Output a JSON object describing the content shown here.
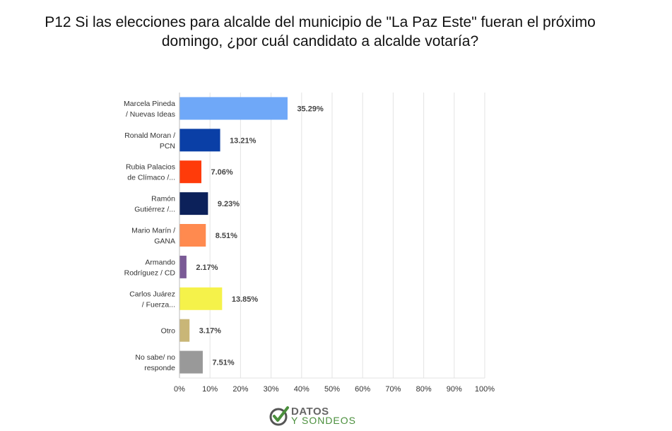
{
  "title": {
    "line1": "P12 Si las elecciones para alcalde del municipio de \"La Paz Este\" fueran el próximo",
    "line2": "domingo, ¿por cuál candidato a alcalde votaría?"
  },
  "chart_data": {
    "type": "bar",
    "orientation": "horizontal",
    "categories": [
      [
        "Marcela Pineda",
        "/ Nuevas Ideas"
      ],
      [
        "Ronald Moran /",
        "PCN"
      ],
      [
        "Rubia Palacios",
        "de Clímaco /..."
      ],
      [
        "Ramón",
        "Gutiérrez /..."
      ],
      [
        "Mario Marín /",
        "GANA"
      ],
      [
        "Armando",
        "Rodríguez / CD"
      ],
      [
        "Carlos Juárez",
        "/ Fuerza..."
      ],
      [
        "Otro"
      ],
      [
        "No sabe/ no",
        "responde"
      ]
    ],
    "values": [
      35.29,
      13.21,
      7.06,
      9.23,
      8.51,
      2.17,
      13.85,
      3.17,
      7.51
    ],
    "value_labels": [
      "35.29%",
      "13.21%",
      "7.06%",
      "9.23%",
      "8.51%",
      "2.17%",
      "13.85%",
      "3.17%",
      "7.51%"
    ],
    "colors": [
      "#6fa8f8",
      "#0a3fa6",
      "#ff3b0a",
      "#0c215a",
      "#ff8a4f",
      "#7a5a96",
      "#f5f24a",
      "#c9b677",
      "#999999"
    ],
    "xlim": [
      0,
      100
    ],
    "xticks": [
      0,
      10,
      20,
      30,
      40,
      50,
      60,
      70,
      80,
      90,
      100
    ],
    "xtick_labels": [
      "0%",
      "10%",
      "20%",
      "30%",
      "40%",
      "50%",
      "60%",
      "70%",
      "80%",
      "90%",
      "100%"
    ],
    "grid": "vertical",
    "legend": "none"
  },
  "logo": {
    "word1": "DATOS",
    "word2": "Y SONDEOS",
    "colors": {
      "gray": "#666666",
      "green": "#4a8f3c"
    }
  }
}
